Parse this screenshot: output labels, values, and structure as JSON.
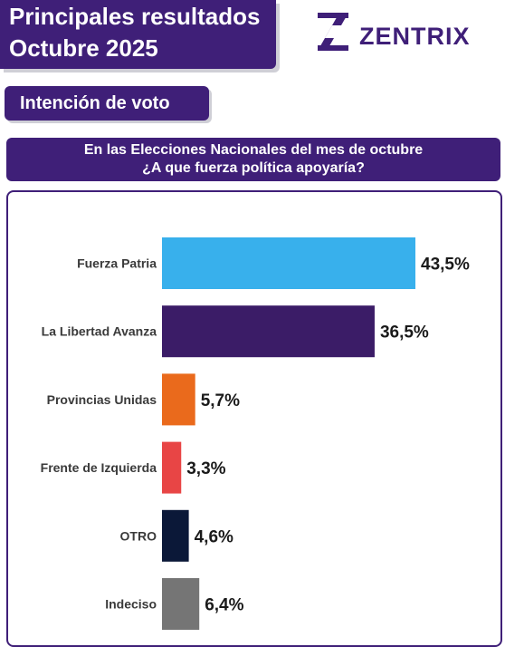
{
  "header": {
    "title_line1": "Principales resultados",
    "title_line2": "Octubre 2025",
    "brand": "ZENTRIX",
    "section": "Intención de voto",
    "question_line1": "En las Elecciones Nacionales del mes de octubre",
    "question_line2": "¿A que fuerza política apoyaría?"
  },
  "colors": {
    "brand_purple": "#3f1f78"
  },
  "chart_data": {
    "type": "bar",
    "orientation": "horizontal",
    "categories": [
      "Fuerza Patria",
      "La Libertad Avanza",
      "Provincias Unidas",
      "Frente de Izquierda",
      "OTRO",
      "Indeciso"
    ],
    "values": [
      43.5,
      36.5,
      5.7,
      3.3,
      4.6,
      6.4
    ],
    "labels": [
      "43,5%",
      "36,5%",
      "5,7%",
      "3,3%",
      "4,6%",
      "6,4%"
    ],
    "colors": [
      "#38b0ec",
      "#3b1c67",
      "#ea6a1c",
      "#e84545",
      "#0b1838",
      "#757575"
    ],
    "unit": "%",
    "xlim": [
      0,
      45
    ],
    "grid": false,
    "legend": "none"
  }
}
